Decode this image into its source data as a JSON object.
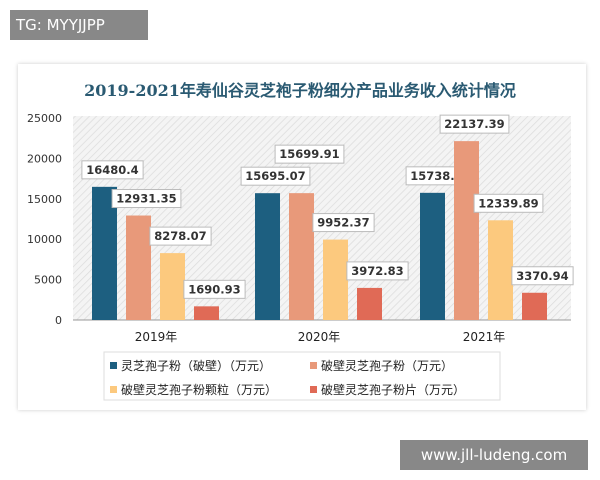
{
  "watermarks": {
    "top_left": "TG: MYYJJPP",
    "bottom_right": "www.jll-ludeng.com"
  },
  "chart_data": {
    "type": "bar",
    "title": "2019-2021年寿仙谷灵芝袍子粉细分产品业务收入统计情况",
    "categories": [
      "2019年",
      "2020年",
      "2021年"
    ],
    "ylim": [
      0,
      25000
    ],
    "yticks": [
      0,
      5000,
      10000,
      15000,
      20000,
      25000
    ],
    "grid": false,
    "legend_placement": "bottom",
    "series": [
      {
        "name": "灵芝孢子粉（破壁）（万元）",
        "color": "#1d5f80",
        "values": [
          16480.4,
          15695.07,
          15738.29
        ],
        "labels": [
          "16480.4",
          "15695.07",
          "15738.29"
        ]
      },
      {
        "name": "破壁灵芝孢子粉（万元）",
        "color": "#e8997a",
        "values": [
          12931.35,
          15699.91,
          22137.39
        ],
        "labels": [
          "12931.35",
          "15699.91",
          "22137.39"
        ]
      },
      {
        "name": "破壁灵芝孢子粉颗粒（万元）",
        "color": "#fcc97e",
        "values": [
          8278.07,
          9952.37,
          12339.89
        ],
        "labels": [
          "8278.07",
          "9952.37",
          "12339.89"
        ]
      },
      {
        "name": "破壁灵芝孢子粉片（万元）",
        "color": "#e06a56",
        "values": [
          1690.93,
          3972.83,
          3370.94
        ],
        "labels": [
          "1690.93",
          "3972.83",
          "3370.94"
        ]
      }
    ]
  }
}
